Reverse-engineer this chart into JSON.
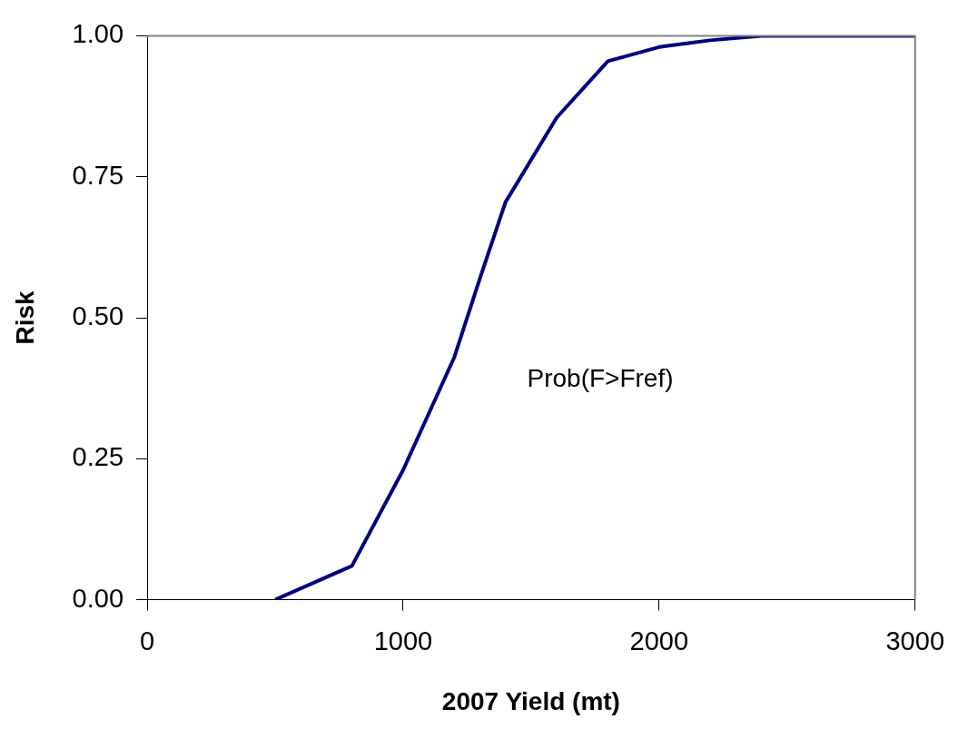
{
  "chart_data": {
    "type": "line",
    "xlabel": "2007 Yield (mt)",
    "ylabel": "Risk",
    "x": [
      500,
      800,
      1000,
      1200,
      1300,
      1400,
      1600,
      1800,
      2000,
      2200,
      2400,
      2600,
      2800,
      3000
    ],
    "series": [
      {
        "color": "#000080",
        "values": [
          0,
          0.06,
          0.23,
          0.43,
          0.57,
          0.705,
          0.855,
          0.955,
          0.98,
          0.992,
          1,
          1,
          1,
          1
        ]
      }
    ],
    "xlim": [
      0,
      3000
    ],
    "xticks": [
      0,
      1000,
      2000,
      3000
    ],
    "ylim": [
      0,
      1
    ],
    "yticks": [
      {
        "value": 0,
        "label": "0.00"
      },
      {
        "value": 0.25,
        "label": "0.25"
      },
      {
        "value": 0.5,
        "label": "0.50"
      },
      {
        "value": 0.75,
        "label": "0.75"
      },
      {
        "value": 1,
        "label": "1.00"
      }
    ],
    "annotations": [
      "Prob(F>Fref)"
    ],
    "grid": false,
    "legend": false,
    "marker": "none",
    "line_style": "solid"
  }
}
